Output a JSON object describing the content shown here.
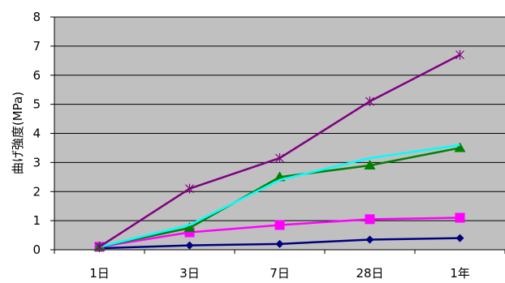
{
  "chart_data": {
    "type": "line",
    "categories": [
      "1日",
      "3日",
      "7日",
      "28日",
      "1年"
    ],
    "ylabel": "曲げ強度(MPa)",
    "ylim": [
      0,
      8
    ],
    "yticks": [
      0,
      1,
      2,
      3,
      4,
      5,
      6,
      7,
      8
    ],
    "grid": true,
    "plot_background": "#c0c0c0",
    "series": [
      {
        "values": [
          0.05,
          0.15,
          0.2,
          0.35,
          0.4
        ],
        "color": "#000080",
        "marker": "diamond"
      },
      {
        "values": [
          0.1,
          0.6,
          0.85,
          1.05,
          1.1
        ],
        "color": "#ff00ff",
        "marker": "square"
      },
      {
        "values": [
          0.1,
          0.75,
          2.5,
          2.9,
          3.5
        ],
        "color": "#008000",
        "marker": "triangle"
      },
      {
        "values": [
          0.1,
          0.85,
          2.4,
          3.15,
          3.6
        ],
        "color": "#00ffff",
        "marker": "none"
      },
      {
        "values": [
          0.1,
          2.1,
          3.15,
          5.1,
          6.7
        ],
        "color": "#800080",
        "marker": "star"
      }
    ]
  }
}
